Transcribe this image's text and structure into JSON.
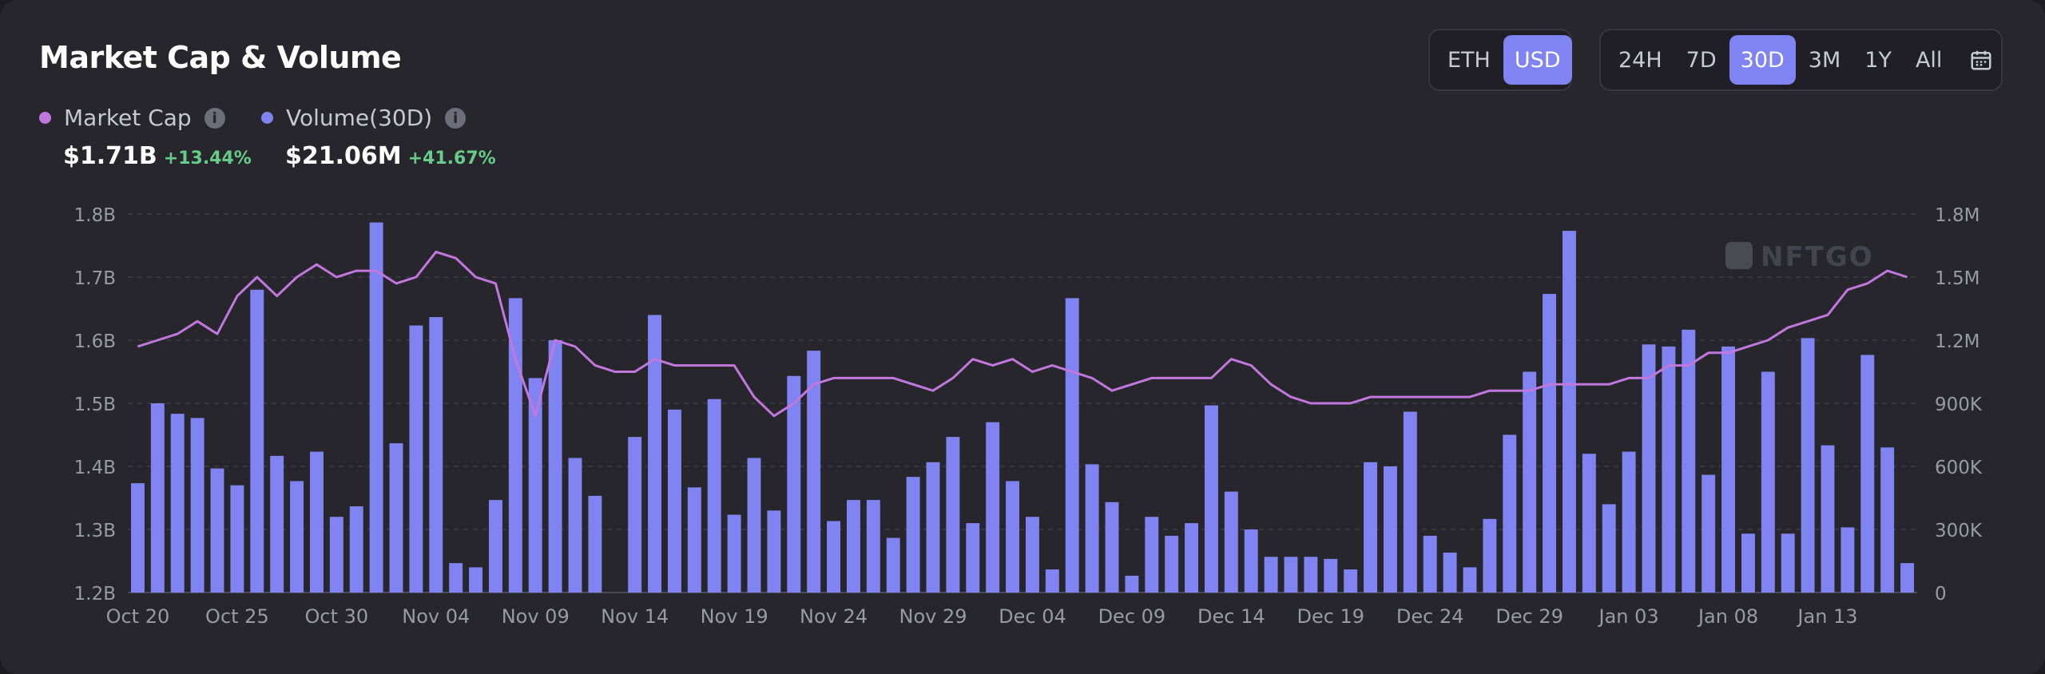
{
  "title": "Market Cap & Volume",
  "currency_toggle": {
    "options": [
      "ETH",
      "USD"
    ],
    "selected": "USD"
  },
  "range_toggle": {
    "options": [
      "24H",
      "7D",
      "30D",
      "3M",
      "1Y",
      "All"
    ],
    "selected": "30D",
    "calendar_icon": "calendar-icon"
  },
  "legend": {
    "market_cap": {
      "label": "Market Cap",
      "value": "$1.71B",
      "change": "+13.44%",
      "color": "#c277de"
    },
    "volume": {
      "label": "Volume(30D)",
      "value": "$21.06M",
      "change": "+41.67%",
      "color": "#8083f2"
    }
  },
  "watermark": "NFTGO",
  "colors": {
    "bar": "#8083f2",
    "line": "#c277de",
    "positive": "#66cc88",
    "active_button": "#8083f2"
  },
  "chart_data": {
    "type": "bar+line",
    "x_tick_labels": [
      "Oct 20",
      "Oct 25",
      "Oct 30",
      "Nov 04",
      "Nov 09",
      "Nov 14",
      "Nov 19",
      "Nov 24",
      "Nov 29",
      "Dec 04",
      "Dec 09",
      "Dec 14",
      "Dec 19",
      "Dec 24",
      "Dec 29",
      "Jan 03",
      "Jan 08",
      "Jan 13"
    ],
    "left_axis": {
      "ticks": [
        "1.2B",
        "1.3B",
        "1.4B",
        "1.5B",
        "1.6B",
        "1.7B",
        "1.8B"
      ],
      "ylim": [
        1.2,
        1.8
      ]
    },
    "right_axis": {
      "ticks": [
        "0",
        "300K",
        "600K",
        "900K",
        "1.2M",
        "1.5M",
        "1.8M"
      ],
      "ylim": [
        0,
        1800000
      ]
    },
    "grid": true,
    "series": [
      {
        "name": "Volume(30D)",
        "type": "bar",
        "axis": "right",
        "values": [
          520000,
          900000,
          850000,
          830000,
          590000,
          510000,
          1440000,
          650000,
          530000,
          670000,
          360000,
          410000,
          1760000,
          710000,
          1270000,
          1310000,
          140000,
          120000,
          440000,
          1400000,
          1020000,
          1200000,
          640000,
          460000,
          0,
          740000,
          1320000,
          870000,
          500000,
          920000,
          370000,
          640000,
          390000,
          1030000,
          1150000,
          340000,
          440000,
          440000,
          260000,
          550000,
          620000,
          740000,
          330000,
          810000,
          530000,
          360000,
          110000,
          1400000,
          610000,
          430000,
          80000,
          360000,
          270000,
          330000,
          890000,
          480000,
          300000,
          170000,
          170000,
          170000,
          160000,
          110000,
          620000,
          600000,
          860000,
          270000,
          190000,
          120000,
          350000,
          750000,
          1050000,
          1420000,
          1720000,
          660000,
          420000,
          670000,
          1180000,
          1170000,
          1250000,
          560000,
          1170000,
          280000,
          1050000,
          280000,
          1210000,
          700000,
          310000,
          1130000,
          690000,
          140000
        ]
      },
      {
        "name": "Market Cap",
        "type": "line",
        "axis": "left",
        "values": [
          1.59,
          1.6,
          1.61,
          1.63,
          1.61,
          1.67,
          1.7,
          1.67,
          1.7,
          1.72,
          1.7,
          1.71,
          1.71,
          1.69,
          1.7,
          1.74,
          1.73,
          1.7,
          1.69,
          1.57,
          1.48,
          1.6,
          1.59,
          1.56,
          1.55,
          1.55,
          1.57,
          1.56,
          1.56,
          1.56,
          1.56,
          1.51,
          1.48,
          1.5,
          1.53,
          1.54,
          1.54,
          1.54,
          1.54,
          1.53,
          1.52,
          1.54,
          1.57,
          1.56,
          1.57,
          1.55,
          1.56,
          1.55,
          1.54,
          1.52,
          1.53,
          1.54,
          1.54,
          1.54,
          1.54,
          1.57,
          1.56,
          1.53,
          1.51,
          1.5,
          1.5,
          1.5,
          1.51,
          1.51,
          1.51,
          1.51,
          1.51,
          1.51,
          1.52,
          1.52,
          1.52,
          1.53,
          1.53,
          1.53,
          1.53,
          1.54,
          1.54,
          1.56,
          1.56,
          1.58,
          1.58,
          1.59,
          1.6,
          1.62,
          1.63,
          1.64,
          1.68,
          1.69,
          1.71,
          1.7
        ]
      }
    ]
  }
}
